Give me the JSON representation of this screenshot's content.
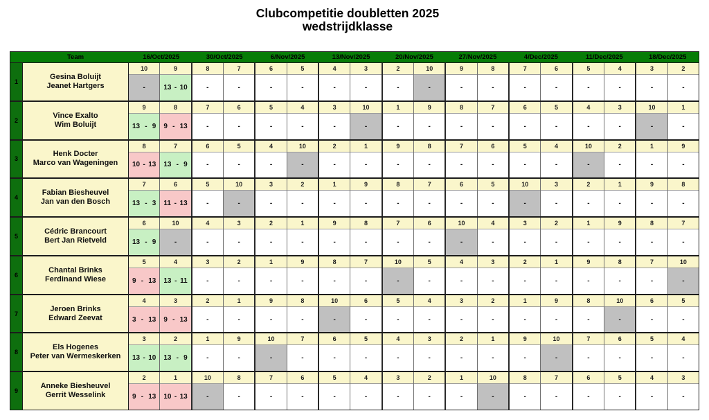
{
  "title": {
    "line1": "Clubcompetitie doubletten 2025",
    "line2": "wedstrijdklasse"
  },
  "colors": {
    "header_green": "#077c07",
    "row_label_green": "#0e6f0e",
    "cell_cream": "#faf6cb",
    "win_green": "#c8f0c3",
    "loss_pink": "#f8c8c8",
    "bye_gray": "#c0c0c0"
  },
  "table": {
    "team_header": "Team",
    "dates": [
      "16/Oct/2025",
      "30/Oct/2025",
      "6/Nov/2025",
      "13/Nov/2025",
      "20/Nov/2025",
      "27/Nov/2025",
      "4/Dec/2025",
      "11/Dec/2025",
      "18/Dec/2025"
    ],
    "teams": [
      {
        "nr": "1",
        "players": [
          "Gesina Boluijt",
          "Jeanet Hartgers"
        ],
        "cells": [
          {
            "opp": "10",
            "score": "-",
            "result": "bye"
          },
          {
            "opp": "9",
            "score": "13 - 10",
            "result": "win"
          },
          {
            "opp": "8",
            "score": "-",
            "result": "pending"
          },
          {
            "opp": "7",
            "score": "-",
            "result": "pending"
          },
          {
            "opp": "6",
            "score": "-",
            "result": "pending"
          },
          {
            "opp": "5",
            "score": "-",
            "result": "pending"
          },
          {
            "opp": "4",
            "score": "-",
            "result": "pending"
          },
          {
            "opp": "3",
            "score": "-",
            "result": "pending"
          },
          {
            "opp": "2",
            "score": "-",
            "result": "pending"
          },
          {
            "opp": "10",
            "score": "-",
            "result": "bye"
          },
          {
            "opp": "9",
            "score": "-",
            "result": "pending"
          },
          {
            "opp": "8",
            "score": "-",
            "result": "pending"
          },
          {
            "opp": "7",
            "score": "-",
            "result": "pending"
          },
          {
            "opp": "6",
            "score": "-",
            "result": "pending"
          },
          {
            "opp": "5",
            "score": "-",
            "result": "pending"
          },
          {
            "opp": "4",
            "score": "-",
            "result": "pending"
          },
          {
            "opp": "3",
            "score": "-",
            "result": "pending"
          },
          {
            "opp": "2",
            "score": "-",
            "result": "pending"
          }
        ]
      },
      {
        "nr": "2",
        "players": [
          "Vince Exalto",
          "Wim Boluijt"
        ],
        "cells": [
          {
            "opp": "9",
            "score": "13 - 9",
            "result": "win"
          },
          {
            "opp": "8",
            "score": "9 - 13",
            "result": "loss"
          },
          {
            "opp": "7",
            "score": "-",
            "result": "pending"
          },
          {
            "opp": "6",
            "score": "-",
            "result": "pending"
          },
          {
            "opp": "5",
            "score": "-",
            "result": "pending"
          },
          {
            "opp": "4",
            "score": "-",
            "result": "pending"
          },
          {
            "opp": "3",
            "score": "-",
            "result": "pending"
          },
          {
            "opp": "10",
            "score": "-",
            "result": "bye"
          },
          {
            "opp": "1",
            "score": "-",
            "result": "pending"
          },
          {
            "opp": "9",
            "score": "-",
            "result": "pending"
          },
          {
            "opp": "8",
            "score": "-",
            "result": "pending"
          },
          {
            "opp": "7",
            "score": "-",
            "result": "pending"
          },
          {
            "opp": "6",
            "score": "-",
            "result": "pending"
          },
          {
            "opp": "5",
            "score": "-",
            "result": "pending"
          },
          {
            "opp": "4",
            "score": "-",
            "result": "pending"
          },
          {
            "opp": "3",
            "score": "-",
            "result": "pending"
          },
          {
            "opp": "10",
            "score": "-",
            "result": "bye"
          },
          {
            "opp": "1",
            "score": "-",
            "result": "pending"
          }
        ]
      },
      {
        "nr": "3",
        "players": [
          "Henk Docter",
          "Marco van Wageningen"
        ],
        "cells": [
          {
            "opp": "8",
            "score": "10 - 13",
            "result": "loss"
          },
          {
            "opp": "7",
            "score": "13 - 9",
            "result": "win"
          },
          {
            "opp": "6",
            "score": "-",
            "result": "pending"
          },
          {
            "opp": "5",
            "score": "-",
            "result": "pending"
          },
          {
            "opp": "4",
            "score": "-",
            "result": "pending"
          },
          {
            "opp": "10",
            "score": "-",
            "result": "bye"
          },
          {
            "opp": "2",
            "score": "-",
            "result": "pending"
          },
          {
            "opp": "1",
            "score": "-",
            "result": "pending"
          },
          {
            "opp": "9",
            "score": "-",
            "result": "pending"
          },
          {
            "opp": "8",
            "score": "-",
            "result": "pending"
          },
          {
            "opp": "7",
            "score": "-",
            "result": "pending"
          },
          {
            "opp": "6",
            "score": "-",
            "result": "pending"
          },
          {
            "opp": "5",
            "score": "-",
            "result": "pending"
          },
          {
            "opp": "4",
            "score": "-",
            "result": "pending"
          },
          {
            "opp": "10",
            "score": "-",
            "result": "bye"
          },
          {
            "opp": "2",
            "score": "-",
            "result": "pending"
          },
          {
            "opp": "1",
            "score": "-",
            "result": "pending"
          },
          {
            "opp": "9",
            "score": "-",
            "result": "pending"
          }
        ]
      },
      {
        "nr": "4",
        "players": [
          "Fabian Biesheuvel",
          "Jan van den Bosch"
        ],
        "cells": [
          {
            "opp": "7",
            "score": "13 - 3",
            "result": "win"
          },
          {
            "opp": "6",
            "score": "11 - 13",
            "result": "loss"
          },
          {
            "opp": "5",
            "score": "-",
            "result": "pending"
          },
          {
            "opp": "10",
            "score": "-",
            "result": "bye"
          },
          {
            "opp": "3",
            "score": "-",
            "result": "pending"
          },
          {
            "opp": "2",
            "score": "-",
            "result": "pending"
          },
          {
            "opp": "1",
            "score": "-",
            "result": "pending"
          },
          {
            "opp": "9",
            "score": "-",
            "result": "pending"
          },
          {
            "opp": "8",
            "score": "-",
            "result": "pending"
          },
          {
            "opp": "7",
            "score": "-",
            "result": "pending"
          },
          {
            "opp": "6",
            "score": "-",
            "result": "pending"
          },
          {
            "opp": "5",
            "score": "-",
            "result": "pending"
          },
          {
            "opp": "10",
            "score": "-",
            "result": "bye"
          },
          {
            "opp": "3",
            "score": "-",
            "result": "pending"
          },
          {
            "opp": "2",
            "score": "-",
            "result": "pending"
          },
          {
            "opp": "1",
            "score": "-",
            "result": "pending"
          },
          {
            "opp": "9",
            "score": "-",
            "result": "pending"
          },
          {
            "opp": "8",
            "score": "-",
            "result": "pending"
          }
        ]
      },
      {
        "nr": "5",
        "players": [
          "Cédric Brancourt",
          "Bert Jan Rietveld"
        ],
        "cells": [
          {
            "opp": "6",
            "score": "13 - 9",
            "result": "win"
          },
          {
            "opp": "10",
            "score": "-",
            "result": "bye"
          },
          {
            "opp": "4",
            "score": "-",
            "result": "pending"
          },
          {
            "opp": "3",
            "score": "-",
            "result": "pending"
          },
          {
            "opp": "2",
            "score": "-",
            "result": "pending"
          },
          {
            "opp": "1",
            "score": "-",
            "result": "pending"
          },
          {
            "opp": "9",
            "score": "-",
            "result": "pending"
          },
          {
            "opp": "8",
            "score": "-",
            "result": "pending"
          },
          {
            "opp": "7",
            "score": "-",
            "result": "pending"
          },
          {
            "opp": "6",
            "score": "-",
            "result": "pending"
          },
          {
            "opp": "10",
            "score": "-",
            "result": "bye"
          },
          {
            "opp": "4",
            "score": "-",
            "result": "pending"
          },
          {
            "opp": "3",
            "score": "-",
            "result": "pending"
          },
          {
            "opp": "2",
            "score": "-",
            "result": "pending"
          },
          {
            "opp": "1",
            "score": "-",
            "result": "pending"
          },
          {
            "opp": "9",
            "score": "-",
            "result": "pending"
          },
          {
            "opp": "8",
            "score": "-",
            "result": "pending"
          },
          {
            "opp": "7",
            "score": "-",
            "result": "pending"
          }
        ]
      },
      {
        "nr": "6",
        "players": [
          "Chantal Brinks",
          "Ferdinand Wiese"
        ],
        "cells": [
          {
            "opp": "5",
            "score": "9 - 13",
            "result": "loss"
          },
          {
            "opp": "4",
            "score": "13 - 11",
            "result": "win"
          },
          {
            "opp": "3",
            "score": "-",
            "result": "pending"
          },
          {
            "opp": "2",
            "score": "-",
            "result": "pending"
          },
          {
            "opp": "1",
            "score": "-",
            "result": "pending"
          },
          {
            "opp": "9",
            "score": "-",
            "result": "pending"
          },
          {
            "opp": "8",
            "score": "-",
            "result": "pending"
          },
          {
            "opp": "7",
            "score": "-",
            "result": "pending"
          },
          {
            "opp": "10",
            "score": "-",
            "result": "bye"
          },
          {
            "opp": "5",
            "score": "-",
            "result": "pending"
          },
          {
            "opp": "4",
            "score": "-",
            "result": "pending"
          },
          {
            "opp": "3",
            "score": "-",
            "result": "pending"
          },
          {
            "opp": "2",
            "score": "-",
            "result": "pending"
          },
          {
            "opp": "1",
            "score": "-",
            "result": "pending"
          },
          {
            "opp": "9",
            "score": "-",
            "result": "pending"
          },
          {
            "opp": "8",
            "score": "-",
            "result": "pending"
          },
          {
            "opp": "7",
            "score": "-",
            "result": "pending"
          },
          {
            "opp": "10",
            "score": "-",
            "result": "bye"
          }
        ]
      },
      {
        "nr": "7",
        "players": [
          "Jeroen Brinks",
          "Edward Zeevat"
        ],
        "cells": [
          {
            "opp": "4",
            "score": "3 - 13",
            "result": "loss"
          },
          {
            "opp": "3",
            "score": "9 - 13",
            "result": "loss"
          },
          {
            "opp": "2",
            "score": "-",
            "result": "pending"
          },
          {
            "opp": "1",
            "score": "-",
            "result": "pending"
          },
          {
            "opp": "9",
            "score": "-",
            "result": "pending"
          },
          {
            "opp": "8",
            "score": "-",
            "result": "pending"
          },
          {
            "opp": "10",
            "score": "-",
            "result": "bye"
          },
          {
            "opp": "6",
            "score": "-",
            "result": "pending"
          },
          {
            "opp": "5",
            "score": "-",
            "result": "pending"
          },
          {
            "opp": "4",
            "score": "-",
            "result": "pending"
          },
          {
            "opp": "3",
            "score": "-",
            "result": "pending"
          },
          {
            "opp": "2",
            "score": "-",
            "result": "pending"
          },
          {
            "opp": "1",
            "score": "-",
            "result": "pending"
          },
          {
            "opp": "9",
            "score": "-",
            "result": "pending"
          },
          {
            "opp": "8",
            "score": "-",
            "result": "pending"
          },
          {
            "opp": "10",
            "score": "-",
            "result": "bye"
          },
          {
            "opp": "6",
            "score": "-",
            "result": "pending"
          },
          {
            "opp": "5",
            "score": "-",
            "result": "pending"
          }
        ]
      },
      {
        "nr": "8",
        "players": [
          "Els Hogenes",
          "Peter van Wermeskerken"
        ],
        "cells": [
          {
            "opp": "3",
            "score": "13 - 10",
            "result": "win"
          },
          {
            "opp": "2",
            "score": "13 - 9",
            "result": "win"
          },
          {
            "opp": "1",
            "score": "-",
            "result": "pending"
          },
          {
            "opp": "9",
            "score": "-",
            "result": "pending"
          },
          {
            "opp": "10",
            "score": "-",
            "result": "bye"
          },
          {
            "opp": "7",
            "score": "-",
            "result": "pending"
          },
          {
            "opp": "6",
            "score": "-",
            "result": "pending"
          },
          {
            "opp": "5",
            "score": "-",
            "result": "pending"
          },
          {
            "opp": "4",
            "score": "-",
            "result": "pending"
          },
          {
            "opp": "3",
            "score": "-",
            "result": "pending"
          },
          {
            "opp": "2",
            "score": "-",
            "result": "pending"
          },
          {
            "opp": "1",
            "score": "-",
            "result": "pending"
          },
          {
            "opp": "9",
            "score": "-",
            "result": "pending"
          },
          {
            "opp": "10",
            "score": "-",
            "result": "bye"
          },
          {
            "opp": "7",
            "score": "-",
            "result": "pending"
          },
          {
            "opp": "6",
            "score": "-",
            "result": "pending"
          },
          {
            "opp": "5",
            "score": "-",
            "result": "pending"
          },
          {
            "opp": "4",
            "score": "-",
            "result": "pending"
          }
        ]
      },
      {
        "nr": "9",
        "players": [
          "Anneke Biesheuvel",
          "Gerrit Wesselink"
        ],
        "cells": [
          {
            "opp": "2",
            "score": "9 - 13",
            "result": "loss"
          },
          {
            "opp": "1",
            "score": "10 - 13",
            "result": "loss"
          },
          {
            "opp": "10",
            "score": "-",
            "result": "bye"
          },
          {
            "opp": "8",
            "score": "-",
            "result": "pending"
          },
          {
            "opp": "7",
            "score": "-",
            "result": "pending"
          },
          {
            "opp": "6",
            "score": "-",
            "result": "pending"
          },
          {
            "opp": "5",
            "score": "-",
            "result": "pending"
          },
          {
            "opp": "4",
            "score": "-",
            "result": "pending"
          },
          {
            "opp": "3",
            "score": "-",
            "result": "pending"
          },
          {
            "opp": "2",
            "score": "-",
            "result": "pending"
          },
          {
            "opp": "1",
            "score": "-",
            "result": "pending"
          },
          {
            "opp": "10",
            "score": "-",
            "result": "bye"
          },
          {
            "opp": "8",
            "score": "-",
            "result": "pending"
          },
          {
            "opp": "7",
            "score": "-",
            "result": "pending"
          },
          {
            "opp": "6",
            "score": "-",
            "result": "pending"
          },
          {
            "opp": "5",
            "score": "-",
            "result": "pending"
          },
          {
            "opp": "4",
            "score": "-",
            "result": "pending"
          },
          {
            "opp": "3",
            "score": "-",
            "result": "pending"
          }
        ]
      }
    ]
  }
}
